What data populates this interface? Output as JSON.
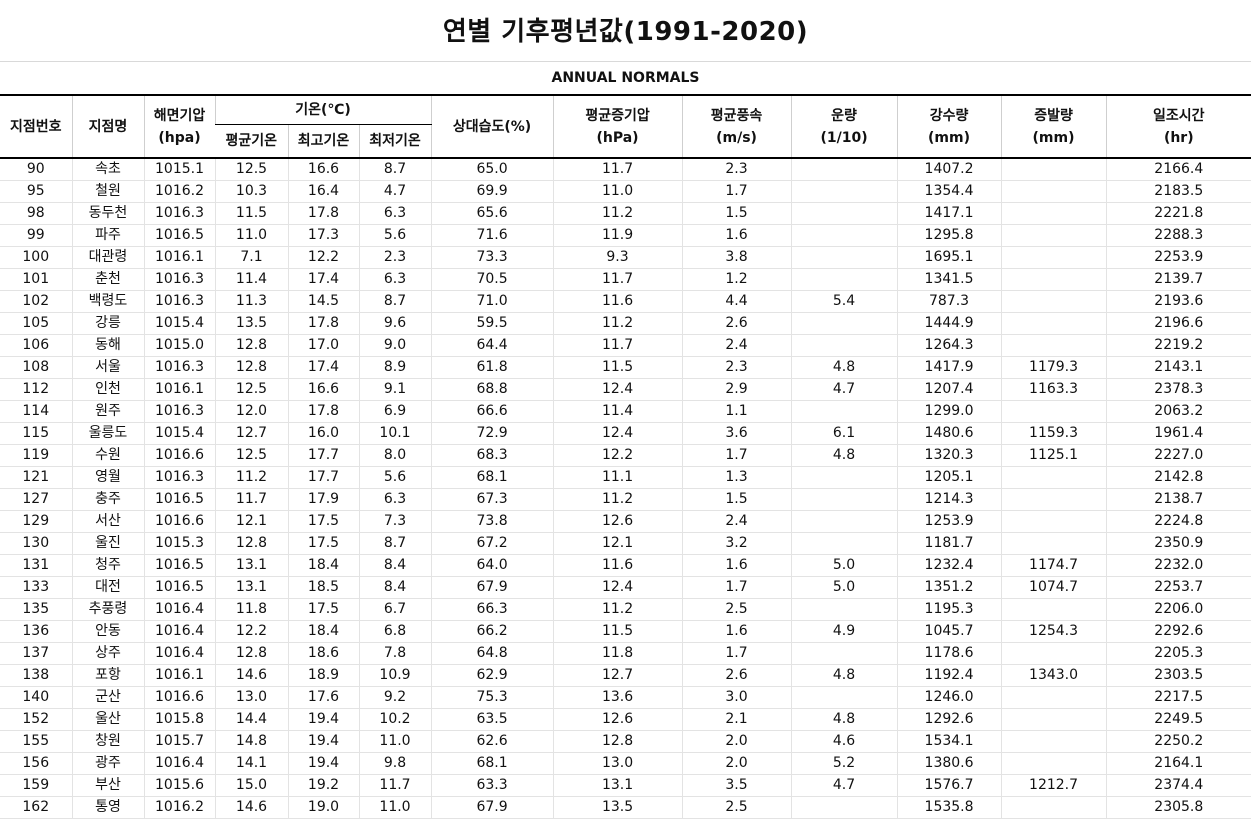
{
  "title": "연별 기후평년값(1991-2020)",
  "subtitle": "ANNUAL NORMALS",
  "headers": {
    "station_no": "지점번호",
    "station_name": "지점명",
    "sea_pressure": [
      "해면기압",
      "(hpa)"
    ],
    "temp_group": "기온(℃)",
    "temp_mean": "평균기온",
    "temp_max": "최고기온",
    "temp_min": "최저기온",
    "humidity": "상대습도(%)",
    "vapor": [
      "평균증기압",
      "(hPa)"
    ],
    "wind": [
      "평균풍속",
      "(m/s)"
    ],
    "cloud": [
      "운량",
      "(1/10)"
    ],
    "precip": [
      "강수량",
      "(mm)"
    ],
    "evap": [
      "증발량",
      "(mm)"
    ],
    "sunshine": [
      "일조시간",
      "(hr)"
    ]
  },
  "rows": [
    [
      "90",
      "속초",
      "1015.1",
      "12.5",
      "16.6",
      "8.7",
      "65.0",
      "11.7",
      "2.3",
      "",
      "1407.2",
      "",
      "2166.4"
    ],
    [
      "95",
      "철원",
      "1016.2",
      "10.3",
      "16.4",
      "4.7",
      "69.9",
      "11.0",
      "1.7",
      "",
      "1354.4",
      "",
      "2183.5"
    ],
    [
      "98",
      "동두천",
      "1016.3",
      "11.5",
      "17.8",
      "6.3",
      "65.6",
      "11.2",
      "1.5",
      "",
      "1417.1",
      "",
      "2221.8"
    ],
    [
      "99",
      "파주",
      "1016.5",
      "11.0",
      "17.3",
      "5.6",
      "71.6",
      "11.9",
      "1.6",
      "",
      "1295.8",
      "",
      "2288.3"
    ],
    [
      "100",
      "대관령",
      "1016.1",
      "7.1",
      "12.2",
      "2.3",
      "73.3",
      "9.3",
      "3.8",
      "",
      "1695.1",
      "",
      "2253.9"
    ],
    [
      "101",
      "춘천",
      "1016.3",
      "11.4",
      "17.4",
      "6.3",
      "70.5",
      "11.7",
      "1.2",
      "",
      "1341.5",
      "",
      "2139.7"
    ],
    [
      "102",
      "백령도",
      "1016.3",
      "11.3",
      "14.5",
      "8.7",
      "71.0",
      "11.6",
      "4.4",
      "5.4",
      "787.3",
      "",
      "2193.6"
    ],
    [
      "105",
      "강릉",
      "1015.4",
      "13.5",
      "17.8",
      "9.6",
      "59.5",
      "11.2",
      "2.6",
      "",
      "1444.9",
      "",
      "2196.6"
    ],
    [
      "106",
      "동해",
      "1015.0",
      "12.8",
      "17.0",
      "9.0",
      "64.4",
      "11.7",
      "2.4",
      "",
      "1264.3",
      "",
      "2219.2"
    ],
    [
      "108",
      "서울",
      "1016.3",
      "12.8",
      "17.4",
      "8.9",
      "61.8",
      "11.5",
      "2.3",
      "4.8",
      "1417.9",
      "1179.3",
      "2143.1"
    ],
    [
      "112",
      "인천",
      "1016.1",
      "12.5",
      "16.6",
      "9.1",
      "68.8",
      "12.4",
      "2.9",
      "4.7",
      "1207.4",
      "1163.3",
      "2378.3"
    ],
    [
      "114",
      "원주",
      "1016.3",
      "12.0",
      "17.8",
      "6.9",
      "66.6",
      "11.4",
      "1.1",
      "",
      "1299.0",
      "",
      "2063.2"
    ],
    [
      "115",
      "울릉도",
      "1015.4",
      "12.7",
      "16.0",
      "10.1",
      "72.9",
      "12.4",
      "3.6",
      "6.1",
      "1480.6",
      "1159.3",
      "1961.4"
    ],
    [
      "119",
      "수원",
      "1016.6",
      "12.5",
      "17.7",
      "8.0",
      "68.3",
      "12.2",
      "1.7",
      "4.8",
      "1320.3",
      "1125.1",
      "2227.0"
    ],
    [
      "121",
      "영월",
      "1016.3",
      "11.2",
      "17.7",
      "5.6",
      "68.1",
      "11.1",
      "1.3",
      "",
      "1205.1",
      "",
      "2142.8"
    ],
    [
      "127",
      "충주",
      "1016.5",
      "11.7",
      "17.9",
      "6.3",
      "67.3",
      "11.2",
      "1.5",
      "",
      "1214.3",
      "",
      "2138.7"
    ],
    [
      "129",
      "서산",
      "1016.6",
      "12.1",
      "17.5",
      "7.3",
      "73.8",
      "12.6",
      "2.4",
      "",
      "1253.9",
      "",
      "2224.8"
    ],
    [
      "130",
      "울진",
      "1015.3",
      "12.8",
      "17.5",
      "8.7",
      "67.2",
      "12.1",
      "3.2",
      "",
      "1181.7",
      "",
      "2350.9"
    ],
    [
      "131",
      "청주",
      "1016.5",
      "13.1",
      "18.4",
      "8.4",
      "64.0",
      "11.6",
      "1.6",
      "5.0",
      "1232.4",
      "1174.7",
      "2232.0"
    ],
    [
      "133",
      "대전",
      "1016.5",
      "13.1",
      "18.5",
      "8.4",
      "67.9",
      "12.4",
      "1.7",
      "5.0",
      "1351.2",
      "1074.7",
      "2253.7"
    ],
    [
      "135",
      "추풍령",
      "1016.4",
      "11.8",
      "17.5",
      "6.7",
      "66.3",
      "11.2",
      "2.5",
      "",
      "1195.3",
      "",
      "2206.0"
    ],
    [
      "136",
      "안동",
      "1016.4",
      "12.2",
      "18.4",
      "6.8",
      "66.2",
      "11.5",
      "1.6",
      "4.9",
      "1045.7",
      "1254.3",
      "2292.6"
    ],
    [
      "137",
      "상주",
      "1016.4",
      "12.8",
      "18.6",
      "7.8",
      "64.8",
      "11.8",
      "1.7",
      "",
      "1178.6",
      "",
      "2205.3"
    ],
    [
      "138",
      "포항",
      "1016.1",
      "14.6",
      "18.9",
      "10.9",
      "62.9",
      "12.7",
      "2.6",
      "4.8",
      "1192.4",
      "1343.0",
      "2303.5"
    ],
    [
      "140",
      "군산",
      "1016.6",
      "13.0",
      "17.6",
      "9.2",
      "75.3",
      "13.6",
      "3.0",
      "",
      "1246.0",
      "",
      "2217.5"
    ],
    [
      "152",
      "울산",
      "1015.8",
      "14.4",
      "19.4",
      "10.2",
      "63.5",
      "12.6",
      "2.1",
      "4.8",
      "1292.6",
      "",
      "2249.5"
    ],
    [
      "155",
      "창원",
      "1015.7",
      "14.8",
      "19.4",
      "11.0",
      "62.6",
      "12.8",
      "2.0",
      "4.6",
      "1534.1",
      "",
      "2250.2"
    ],
    [
      "156",
      "광주",
      "1016.4",
      "14.1",
      "19.4",
      "9.8",
      "68.1",
      "13.0",
      "2.0",
      "5.2",
      "1380.6",
      "",
      "2164.1"
    ],
    [
      "159",
      "부산",
      "1015.6",
      "15.0",
      "19.2",
      "11.7",
      "63.3",
      "13.1",
      "3.5",
      "4.7",
      "1576.7",
      "1212.7",
      "2374.4"
    ],
    [
      "162",
      "통영",
      "1016.2",
      "14.6",
      "19.0",
      "11.0",
      "67.9",
      "13.5",
      "2.5",
      "",
      "1535.8",
      "",
      "2305.8"
    ]
  ]
}
